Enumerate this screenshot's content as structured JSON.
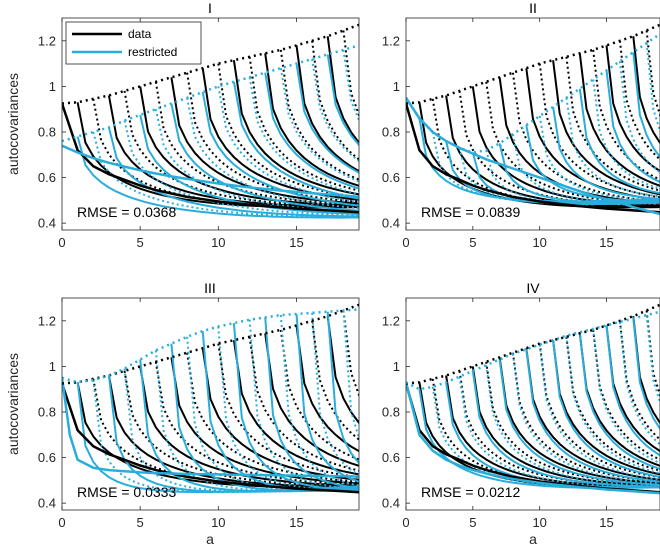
{
  "colors": {
    "data": "#000000",
    "restricted": "#29AEDC",
    "axes": "#262626"
  },
  "chart_data": [
    {
      "type": "line",
      "title": "I",
      "xlabel": "",
      "ylabel": "autocovariances",
      "xlim": [
        0,
        19
      ],
      "ylim": [
        0.37,
        1.3
      ],
      "xticks": [
        0,
        5,
        10,
        15
      ],
      "yticks": [
        0.4,
        0.6,
        0.8,
        1,
        1.2
      ],
      "annotation": "RMSE = 0.0368",
      "legend": {
        "placement": "top-left",
        "entries": [
          "data",
          "restricted"
        ]
      },
      "series": [
        {
          "name": "data",
          "family": "data",
          "x": [
            0,
            1,
            2,
            3,
            4,
            5,
            6,
            7,
            8,
            9,
            10,
            11,
            12,
            13,
            14,
            15,
            16,
            17,
            18,
            19
          ],
          "values": [
            0.925,
            0.72,
            0.65,
            0.615,
            0.59,
            0.565,
            0.545,
            0.53,
            0.515,
            0.505,
            0.495,
            0.488,
            0.481,
            0.475,
            0.469,
            0.464,
            0.46,
            0.456,
            0.452,
            0.448
          ]
        },
        {
          "name": "restricted",
          "family": "restricted",
          "x": [
            0,
            1,
            2,
            3,
            4,
            5,
            6,
            7,
            8,
            9,
            10,
            11,
            12,
            13,
            14,
            15,
            16,
            17,
            18,
            19
          ],
          "values": [
            0.74,
            0.71,
            0.685,
            0.665,
            0.648,
            0.632,
            0.618,
            0.605,
            0.594,
            0.584,
            0.574,
            0.565,
            0.557,
            0.55,
            0.543,
            0.537,
            0.531,
            0.526,
            0.521,
            0.516
          ]
        },
        {
          "name": "data variance",
          "family": "data",
          "dotted": true,
          "x": [
            0,
            1,
            2,
            3,
            4,
            5,
            6,
            7,
            8,
            9,
            10,
            11,
            12,
            13,
            14,
            15,
            16,
            17,
            18,
            19
          ],
          "values": [
            0.925,
            0.93,
            0.945,
            0.96,
            0.98,
            1.0,
            1.02,
            1.04,
            1.06,
            1.08,
            1.1,
            1.115,
            1.13,
            1.145,
            1.16,
            1.18,
            1.2,
            1.22,
            1.245,
            1.27
          ]
        },
        {
          "name": "restricted variance",
          "family": "restricted",
          "dotted": true,
          "x": [
            0,
            1,
            2,
            3,
            4,
            5,
            6,
            7,
            8,
            9,
            10,
            11,
            12,
            13,
            14,
            15,
            16,
            17,
            18,
            19
          ],
          "values": [
            0.76,
            0.78,
            0.8,
            0.82,
            0.85,
            0.875,
            0.9,
            0.925,
            0.95,
            0.975,
            1.0,
            1.02,
            1.04,
            1.06,
            1.08,
            1.1,
            1.12,
            1.14,
            1.16,
            1.18
          ]
        }
      ],
      "cohort_decay": {
        "data": {
          "floor": 0.36,
          "rate": 0.55
        },
        "restricted": {
          "floor": 0.3,
          "rate": 0.45
        }
      }
    },
    {
      "type": "line",
      "title": "II",
      "xlabel": "",
      "ylabel": "",
      "xlim": [
        0,
        19
      ],
      "ylim": [
        0.37,
        1.3
      ],
      "xticks": [
        0,
        5,
        10,
        15
      ],
      "yticks": [
        0.4,
        0.6,
        0.8,
        1,
        1.2
      ],
      "annotation": "RMSE = 0.0839",
      "series": [
        {
          "name": "data",
          "family": "data",
          "x": [
            0,
            1,
            2,
            3,
            4,
            5,
            6,
            7,
            8,
            9,
            10,
            11,
            12,
            13,
            14,
            15,
            16,
            17,
            18,
            19
          ],
          "values": [
            0.925,
            0.72,
            0.65,
            0.615,
            0.59,
            0.565,
            0.545,
            0.53,
            0.515,
            0.505,
            0.495,
            0.488,
            0.481,
            0.475,
            0.469,
            0.464,
            0.46,
            0.456,
            0.452,
            0.448
          ]
        },
        {
          "name": "restricted",
          "family": "restricted",
          "x": [
            0,
            1,
            2,
            3,
            4,
            5,
            6,
            7,
            8,
            9,
            10,
            11,
            12,
            13,
            14,
            15,
            16,
            17,
            18,
            19
          ],
          "values": [
            0.95,
            0.86,
            0.8,
            0.76,
            0.73,
            0.705,
            0.68,
            0.66,
            0.64,
            0.62,
            0.6,
            0.58,
            0.56,
            0.54,
            0.52,
            0.505,
            0.49,
            0.47,
            0.455,
            0.44
          ]
        },
        {
          "name": "data variance",
          "family": "data",
          "dotted": true,
          "x": [
            0,
            1,
            2,
            3,
            4,
            5,
            6,
            7,
            8,
            9,
            10,
            11,
            12,
            13,
            14,
            15,
            16,
            17,
            18,
            19
          ],
          "values": [
            0.925,
            0.93,
            0.945,
            0.96,
            0.98,
            1.0,
            1.02,
            1.04,
            1.06,
            1.08,
            1.1,
            1.115,
            1.13,
            1.145,
            1.16,
            1.18,
            1.2,
            1.22,
            1.245,
            1.27
          ]
        },
        {
          "name": "restricted variance",
          "family": "restricted",
          "dotted": true,
          "x": [
            0,
            1,
            2,
            3,
            4,
            5,
            6,
            7,
            8,
            9,
            10,
            11,
            12,
            13,
            14,
            15,
            16,
            17,
            18,
            19
          ],
          "values": [
            0.95,
            0.86,
            0.8,
            0.76,
            0.73,
            0.71,
            0.72,
            0.75,
            0.79,
            0.83,
            0.87,
            0.91,
            0.95,
            0.99,
            1.03,
            1.07,
            1.11,
            1.15,
            1.19,
            1.23
          ]
        }
      ],
      "cohort_decay": {
        "data": {
          "floor": 0.36,
          "rate": 0.55
        },
        "restricted": {
          "floor": 0.42,
          "rate": 0.7
        }
      }
    },
    {
      "type": "line",
      "title": "III",
      "xlabel": "a",
      "ylabel": "autocovariances",
      "xlim": [
        0,
        19
      ],
      "ylim": [
        0.37,
        1.3
      ],
      "xticks": [
        0,
        5,
        10,
        15
      ],
      "yticks": [
        0.4,
        0.6,
        0.8,
        1,
        1.2
      ],
      "annotation": "RMSE = 0.0333",
      "series": [
        {
          "name": "data",
          "family": "data",
          "x": [
            0,
            1,
            2,
            3,
            4,
            5,
            6,
            7,
            8,
            9,
            10,
            11,
            12,
            13,
            14,
            15,
            16,
            17,
            18,
            19
          ],
          "values": [
            0.925,
            0.72,
            0.65,
            0.615,
            0.59,
            0.565,
            0.545,
            0.53,
            0.515,
            0.505,
            0.495,
            0.488,
            0.481,
            0.475,
            0.469,
            0.464,
            0.46,
            0.456,
            0.452,
            0.448
          ]
        },
        {
          "name": "restricted",
          "family": "restricted",
          "x": [
            0,
            0.5,
            1,
            2,
            3,
            4,
            5,
            6,
            7,
            8,
            9,
            10,
            11,
            12,
            13,
            14,
            15,
            16,
            17,
            18,
            19
          ],
          "values": [
            0.95,
            0.7,
            0.59,
            0.555,
            0.545,
            0.54,
            0.535,
            0.532,
            0.53,
            0.528,
            0.527,
            0.526,
            0.525,
            0.524,
            0.523,
            0.522,
            0.521,
            0.52,
            0.519,
            0.518,
            0.517
          ]
        },
        {
          "name": "data variance",
          "family": "data",
          "dotted": true,
          "x": [
            0,
            1,
            2,
            3,
            4,
            5,
            6,
            7,
            8,
            9,
            10,
            11,
            12,
            13,
            14,
            15,
            16,
            17,
            18,
            19
          ],
          "values": [
            0.925,
            0.93,
            0.945,
            0.96,
            0.98,
            1.0,
            1.02,
            1.04,
            1.06,
            1.08,
            1.1,
            1.115,
            1.13,
            1.145,
            1.16,
            1.18,
            1.2,
            1.22,
            1.245,
            1.27
          ]
        },
        {
          "name": "restricted variance",
          "family": "restricted",
          "dotted": true,
          "x": [
            0,
            1,
            2,
            3,
            4,
            5,
            6,
            7,
            8,
            9,
            10,
            11,
            12,
            13,
            14,
            15,
            16,
            17,
            18,
            19
          ],
          "values": [
            0.95,
            0.93,
            0.94,
            0.96,
            0.99,
            1.03,
            1.07,
            1.1,
            1.13,
            1.155,
            1.175,
            1.19,
            1.205,
            1.215,
            1.225,
            1.23,
            1.235,
            1.24,
            1.245,
            1.25
          ]
        }
      ],
      "cohort_decay": {
        "data": {
          "floor": 0.36,
          "rate": 0.55
        },
        "restricted": {
          "floor": 0.4,
          "rate": 1.1
        }
      }
    },
    {
      "type": "line",
      "title": "IV",
      "xlabel": "a",
      "ylabel": "",
      "xlim": [
        0,
        19
      ],
      "ylim": [
        0.37,
        1.3
      ],
      "xticks": [
        0,
        5,
        10,
        15
      ],
      "yticks": [
        0.4,
        0.6,
        0.8,
        1,
        1.2
      ],
      "annotation": "RMSE = 0.0212",
      "series": [
        {
          "name": "data",
          "family": "data",
          "x": [
            0,
            1,
            2,
            3,
            4,
            5,
            6,
            7,
            8,
            9,
            10,
            11,
            12,
            13,
            14,
            15,
            16,
            17,
            18,
            19
          ],
          "values": [
            0.925,
            0.72,
            0.65,
            0.615,
            0.59,
            0.565,
            0.545,
            0.53,
            0.515,
            0.505,
            0.495,
            0.488,
            0.481,
            0.475,
            0.469,
            0.464,
            0.46,
            0.456,
            0.452,
            0.448
          ]
        },
        {
          "name": "restricted",
          "family": "restricted",
          "x": [
            0,
            1,
            2,
            3,
            4,
            5,
            6,
            7,
            8,
            9,
            10,
            11,
            12,
            13,
            14,
            15,
            16,
            17,
            18,
            19
          ],
          "values": [
            0.93,
            0.7,
            0.63,
            0.59,
            0.565,
            0.545,
            0.53,
            0.517,
            0.506,
            0.497,
            0.489,
            0.482,
            0.476,
            0.47,
            0.465,
            0.46,
            0.456,
            0.452,
            0.448,
            0.444
          ]
        },
        {
          "name": "data variance",
          "family": "data",
          "dotted": true,
          "x": [
            0,
            1,
            2,
            3,
            4,
            5,
            6,
            7,
            8,
            9,
            10,
            11,
            12,
            13,
            14,
            15,
            16,
            17,
            18,
            19
          ],
          "values": [
            0.925,
            0.93,
            0.945,
            0.96,
            0.98,
            1.0,
            1.02,
            1.04,
            1.06,
            1.08,
            1.1,
            1.115,
            1.13,
            1.145,
            1.16,
            1.18,
            1.2,
            1.22,
            1.245,
            1.27
          ]
        },
        {
          "name": "restricted variance",
          "family": "restricted",
          "dotted": true,
          "x": [
            0,
            1,
            2,
            3,
            4,
            5,
            6,
            7,
            8,
            9,
            10,
            11,
            12,
            13,
            14,
            15,
            16,
            17,
            18,
            19
          ],
          "values": [
            0.93,
            0.9,
            0.91,
            0.93,
            0.955,
            0.98,
            1.005,
            1.03,
            1.055,
            1.075,
            1.095,
            1.115,
            1.135,
            1.15,
            1.165,
            1.18,
            1.195,
            1.21,
            1.225,
            1.24
          ]
        }
      ],
      "cohort_decay": {
        "data": {
          "floor": 0.36,
          "rate": 0.55
        },
        "restricted": {
          "floor": 0.37,
          "rate": 0.6
        }
      }
    }
  ]
}
